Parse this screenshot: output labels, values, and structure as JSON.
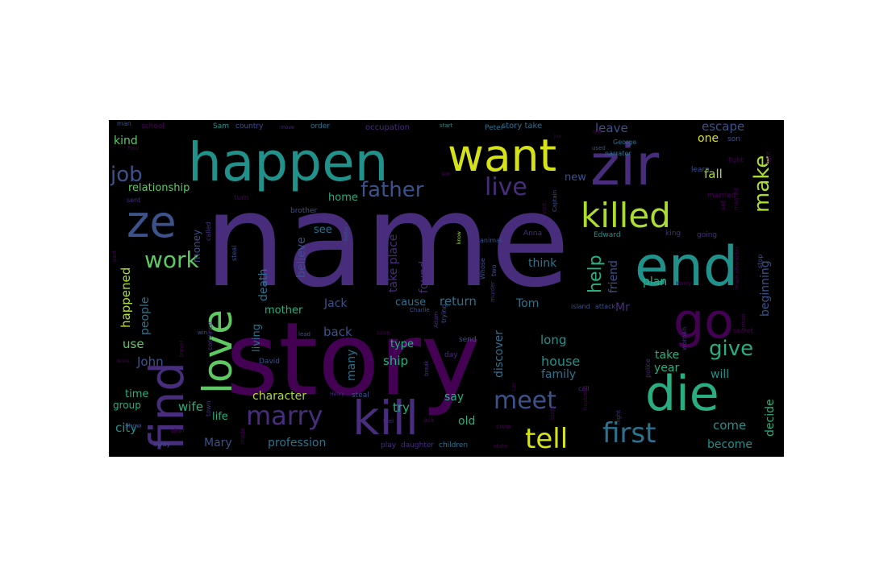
{
  "wordcloud": {
    "background": "#000000",
    "palette": {
      "p1": "#440154",
      "p2": "#472d7b",
      "p3": "#3b528b",
      "p4": "#2c728e",
      "p5": "#21918c",
      "p6": "#28ae80",
      "p7": "#5ec962",
      "p8": "#addc30",
      "p9": "#d5e21a"
    },
    "words": [
      {
        "text": "name"
      },
      {
        "text": "story"
      },
      {
        "text": "happen"
      },
      {
        "text": "want"
      },
      {
        "text": "zir"
      },
      {
        "text": "end"
      },
      {
        "text": "ze"
      },
      {
        "text": "killed"
      },
      {
        "text": "find"
      },
      {
        "text": "love"
      },
      {
        "text": "kill"
      },
      {
        "text": "die"
      },
      {
        "text": "go"
      },
      {
        "text": "father"
      },
      {
        "text": "job"
      },
      {
        "text": "work"
      },
      {
        "text": "live"
      },
      {
        "text": "make"
      },
      {
        "text": "marry"
      },
      {
        "text": "meet"
      },
      {
        "text": "tell"
      },
      {
        "text": "first"
      },
      {
        "text": "give"
      },
      {
        "text": "help"
      },
      {
        "text": "relationship"
      },
      {
        "text": "kind"
      },
      {
        "text": "escape"
      },
      {
        "text": "leave"
      },
      {
        "text": "one"
      },
      {
        "text": "fall"
      },
      {
        "text": "new"
      },
      {
        "text": "home"
      },
      {
        "text": "believe"
      },
      {
        "text": "see"
      },
      {
        "text": "take place"
      },
      {
        "text": "friend"
      },
      {
        "text": "beginning"
      },
      {
        "text": "plan"
      },
      {
        "text": "think"
      },
      {
        "text": "found"
      },
      {
        "text": "happened"
      },
      {
        "text": "people"
      },
      {
        "text": "death"
      },
      {
        "text": "living"
      },
      {
        "text": "mother"
      },
      {
        "text": "Jack"
      },
      {
        "text": "cause"
      },
      {
        "text": "return"
      },
      {
        "text": "Tom"
      },
      {
        "text": "Mr"
      },
      {
        "text": "long"
      },
      {
        "text": "take"
      },
      {
        "text": "house"
      },
      {
        "text": "family"
      },
      {
        "text": "year"
      },
      {
        "text": "will"
      },
      {
        "text": "back"
      },
      {
        "text": "type"
      },
      {
        "text": "ship"
      },
      {
        "text": "discover"
      },
      {
        "text": "many"
      },
      {
        "text": "use"
      },
      {
        "text": "John"
      },
      {
        "text": "time"
      },
      {
        "text": "wife"
      },
      {
        "text": "group"
      },
      {
        "text": "life"
      },
      {
        "text": "character"
      },
      {
        "text": "try"
      },
      {
        "text": "say"
      },
      {
        "text": "old"
      },
      {
        "text": "come"
      },
      {
        "text": "decide"
      },
      {
        "text": "become"
      },
      {
        "text": "city"
      },
      {
        "text": "Mary"
      },
      {
        "text": "profession"
      },
      {
        "text": "children"
      },
      {
        "text": "daughter"
      },
      {
        "text": "play"
      },
      {
        "text": "man"
      },
      {
        "text": "school"
      },
      {
        "text": "Sam"
      },
      {
        "text": "country"
      },
      {
        "text": "order"
      },
      {
        "text": "occupation"
      },
      {
        "text": "Peter"
      },
      {
        "text": "story take"
      },
      {
        "text": "George"
      },
      {
        "text": "used"
      },
      {
        "text": "son"
      },
      {
        "text": "money"
      },
      {
        "text": "Edward"
      },
      {
        "text": "king"
      },
      {
        "text": "Anna"
      },
      {
        "text": "David"
      },
      {
        "text": "island"
      },
      {
        "text": "attack"
      },
      {
        "text": "police"
      },
      {
        "text": "married"
      },
      {
        "text": "learn"
      },
      {
        "text": "set"
      },
      {
        "text": "turn"
      },
      {
        "text": "brother"
      },
      {
        "text": "sent"
      },
      {
        "text": "narrator"
      },
      {
        "text": "Paul"
      },
      {
        "text": "stop"
      },
      {
        "text": "going"
      },
      {
        "text": "fight"
      },
      {
        "text": "part"
      },
      {
        "text": "called"
      },
      {
        "text": "Captain"
      },
      {
        "text": "visit"
      },
      {
        "text": "much"
      },
      {
        "text": "animal"
      },
      {
        "text": "Whose"
      },
      {
        "text": "two"
      },
      {
        "text": "trying"
      },
      {
        "text": "murder"
      },
      {
        "text": "left"
      },
      {
        "text": "Harry"
      },
      {
        "text": "main character"
      },
      {
        "text": "prison"
      },
      {
        "text": "secret"
      },
      {
        "text": "woman"
      },
      {
        "text": "police"
      },
      {
        "text": "send"
      },
      {
        "text": "day"
      },
      {
        "text": "save"
      },
      {
        "text": "break"
      },
      {
        "text": "Adam"
      },
      {
        "text": "Charlie"
      },
      {
        "text": "lead"
      },
      {
        "text": "win"
      },
      {
        "text": "town"
      },
      {
        "text": "convince"
      },
      {
        "text": "travel"
      },
      {
        "text": "steal"
      },
      {
        "text": "ask"
      },
      {
        "text": "feel"
      },
      {
        "text": "crew"
      },
      {
        "text": "body"
      },
      {
        "text": "call"
      },
      {
        "text": "night"
      },
      {
        "text": "car"
      },
      {
        "text": "show"
      },
      {
        "text": "away"
      },
      {
        "text": "made"
      },
      {
        "text": "state"
      },
      {
        "text": "affair"
      },
      {
        "text": "move"
      },
      {
        "text": "start"
      },
      {
        "text": "Joe"
      },
      {
        "text": "war"
      },
      {
        "text": "event"
      },
      {
        "text": "better"
      },
      {
        "text": "gets"
      },
      {
        "text": "know"
      },
      {
        "text": "may"
      },
      {
        "text": "husband"
      },
      {
        "text": "man"
      },
      {
        "text": "Anne"
      },
      {
        "text": "Henry"
      }
    ]
  }
}
